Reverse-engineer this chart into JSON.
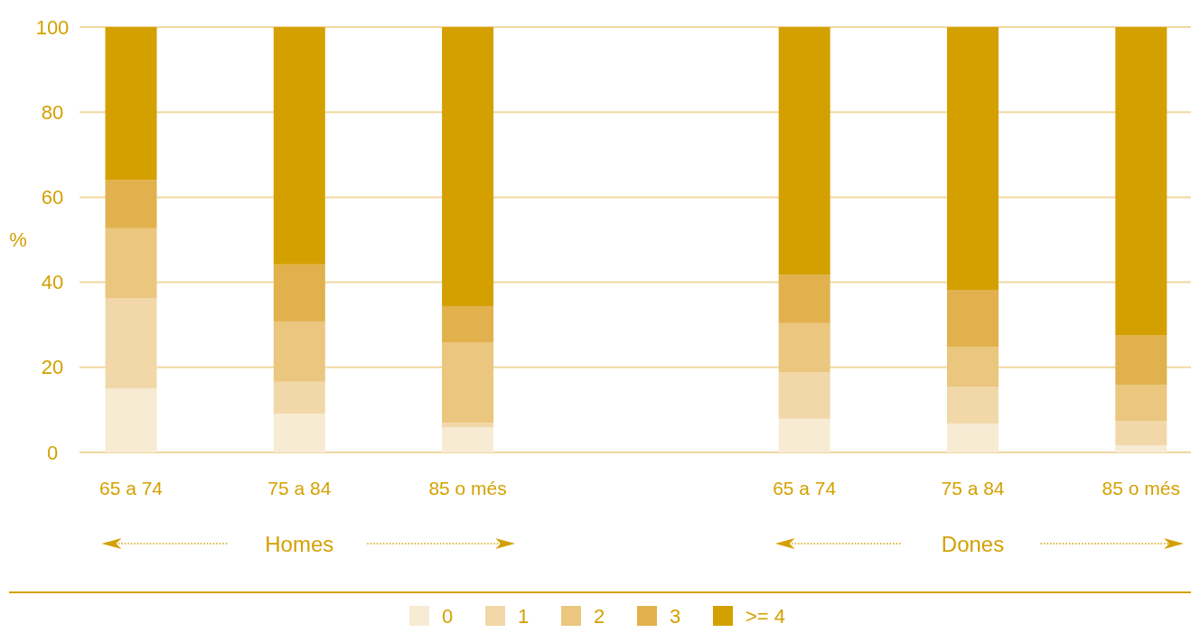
{
  "chart_data": {
    "type": "bar",
    "stacked": true,
    "ylabel": "%",
    "categories": [
      "65 a 74",
      "75 a 84",
      "85 o més",
      null,
      "65 a 74",
      "75 a 84",
      "85 o més"
    ],
    "series": [
      {
        "name": "0",
        "color": "#f7ebd4",
        "values": [
          15,
          9.1,
          5.9,
          null,
          7.9,
          6.8,
          1.7
        ]
      },
      {
        "name": "1",
        "color": "#f2d8a9",
        "values": [
          21.3,
          7.5,
          1.1,
          null,
          11,
          8.7,
          5.7
        ]
      },
      {
        "name": "2",
        "color": "#eac67e",
        "values": [
          16.4,
          14.2,
          18.9,
          null,
          11.5,
          9.3,
          8.5
        ]
      },
      {
        "name": "3",
        "color": "#e1b14d",
        "values": [
          11.4,
          13.4,
          8.5,
          null,
          11.4,
          13.4,
          11.7
        ]
      },
      {
        "name": ">= 4",
        "color": "#d4a000",
        "values": [
          35.9,
          55.8,
          65.6,
          null,
          58.2,
          61.8,
          72.4
        ]
      }
    ],
    "ylim": [
      0,
      100
    ],
    "yticks": [
      0,
      20,
      40,
      60,
      80,
      100
    ],
    "grid": "y",
    "legend": "bottom",
    "annotations": [
      "Homes",
      "Dones"
    ]
  }
}
